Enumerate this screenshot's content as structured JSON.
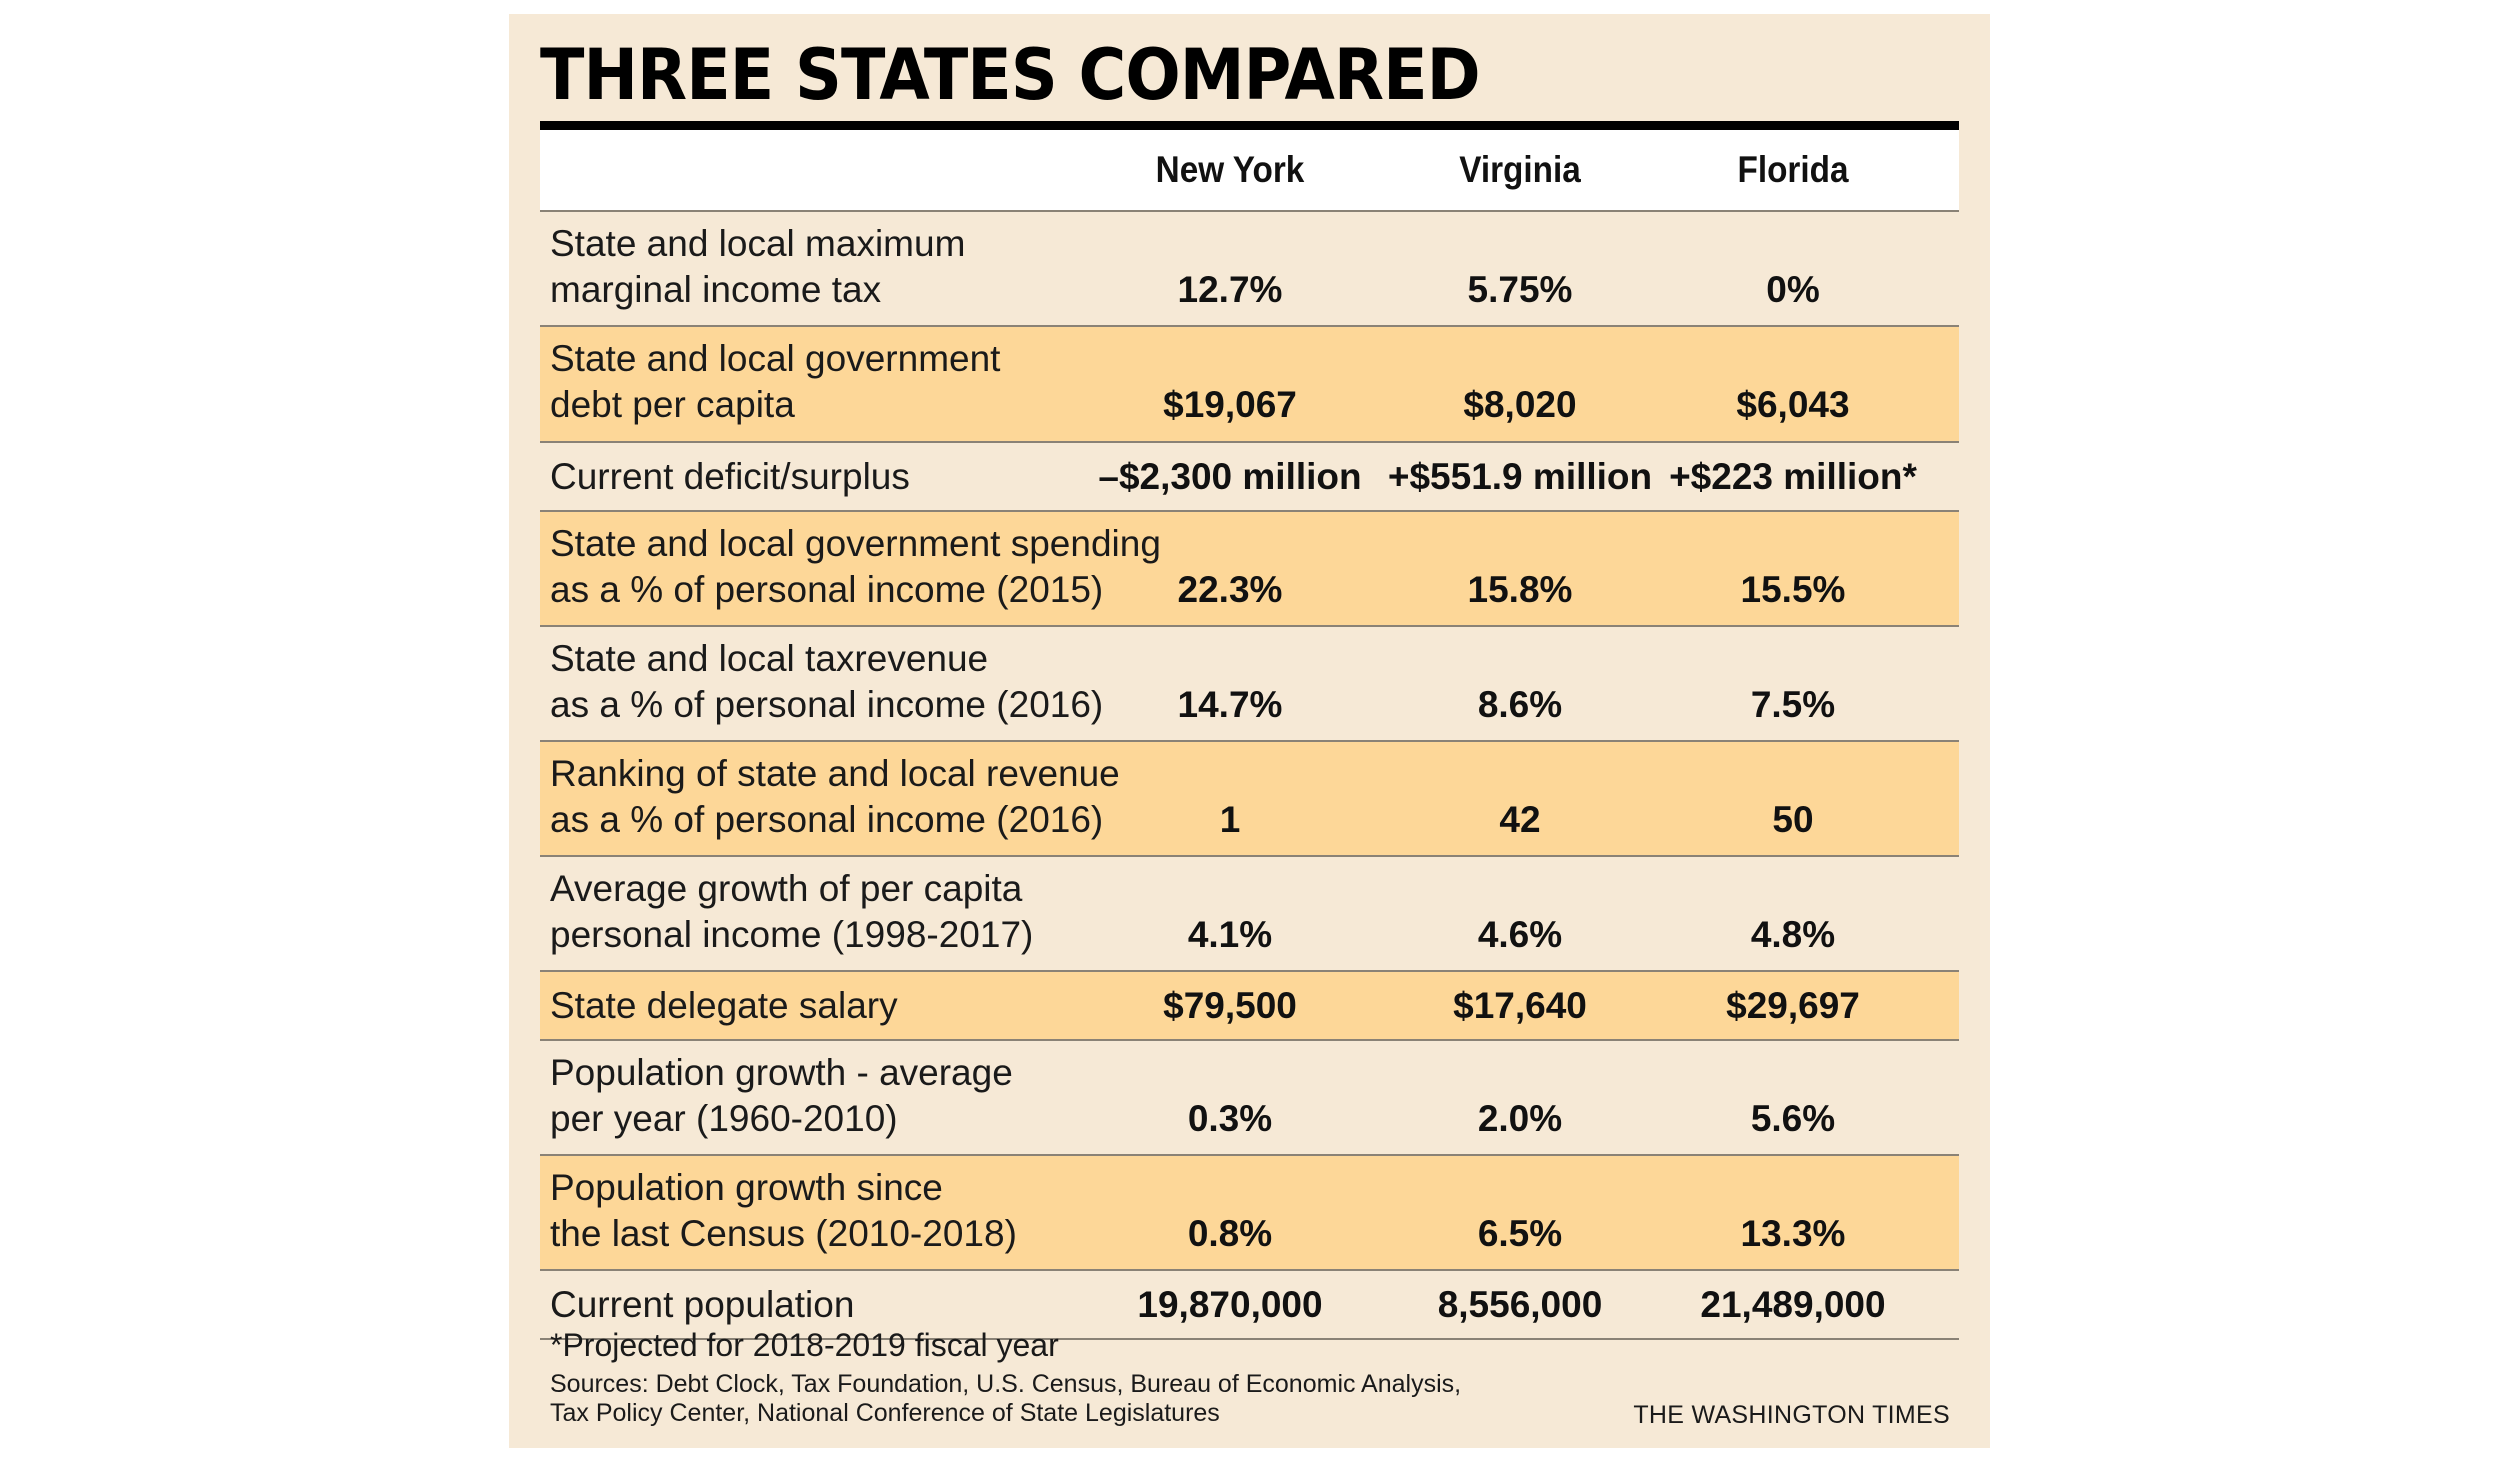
{
  "title": "THREE STATES COMPARED",
  "columns": [
    "New York",
    "Virginia",
    "Florida"
  ],
  "rows": [
    {
      "label": "State and local maximum\nmarginal income tax",
      "values": [
        "12.7%",
        "5.75%",
        "0%"
      ]
    },
    {
      "label": "State and local government\ndebt per capita",
      "values": [
        "$19,067",
        "$8,020",
        "$6,043"
      ]
    },
    {
      "label": "Current deficit/surplus",
      "values": [
        "–$2,300 million",
        "+$551.9 million",
        "+$223 million*"
      ]
    },
    {
      "label": "State and local government spending\nas a % of personal income (2015)",
      "values": [
        "22.3%",
        "15.8%",
        "15.5%"
      ]
    },
    {
      "label": "State and local taxrevenue\nas a % of personal income (2016)",
      "values": [
        "14.7%",
        "8.6%",
        "7.5%"
      ]
    },
    {
      "label": "Ranking of state and local revenue\nas a % of personal income (2016)",
      "values": [
        "1",
        "42",
        "50"
      ]
    },
    {
      "label": "Average growth of per capita\npersonal income (1998-2017)",
      "values": [
        "4.1%",
        "4.6%",
        "4.8%"
      ]
    },
    {
      "label": "State delegate salary",
      "values": [
        "$79,500",
        "$17,640",
        "$29,697"
      ]
    },
    {
      "label": "Population growth - average\nper year (1960-2010)",
      "values": [
        "0.3%",
        "2.0%",
        "5.6%"
      ]
    },
    {
      "label": "Population growth since\nthe last Census (2010-2018)",
      "values": [
        "0.8%",
        "6.5%",
        "13.3%"
      ]
    },
    {
      "label": "Current population",
      "values": [
        "19,870,000",
        "8,556,000",
        "21,489,000"
      ]
    }
  ],
  "footnote": "*Projected for 2018-2019 fiscal year",
  "sources": "Sources: Debt Clock, Tax Foundation, U.S. Census, Bureau of Economic Analysis,\nTax Policy Center, National Conference of State Legislatures",
  "credit": "THE WASHINGTON TIMES",
  "colors": {
    "panel": "#f6e9d6",
    "highlight_row": "#fdd798",
    "header_bg": "#ffffff",
    "rule": "#000000"
  }
}
